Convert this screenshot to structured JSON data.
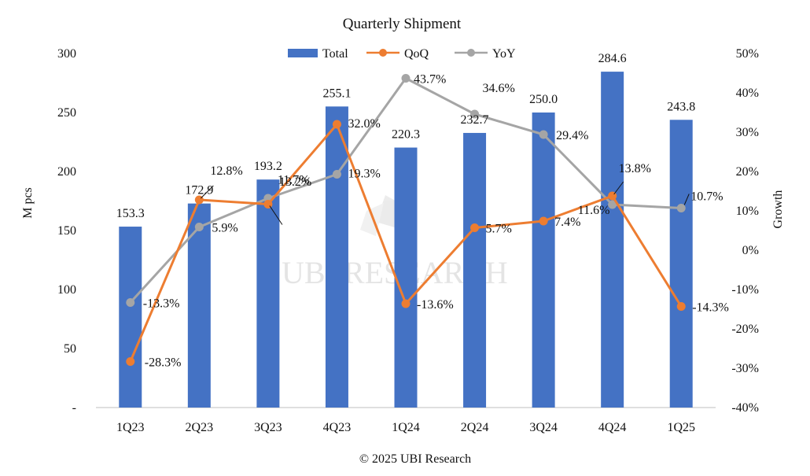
{
  "chart_data": {
    "type": "bar",
    "title": "Quarterly Shipment",
    "categories": [
      "1Q23",
      "2Q23",
      "3Q23",
      "4Q23",
      "1Q24",
      "2Q24",
      "3Q24",
      "4Q24",
      "1Q25"
    ],
    "series": [
      {
        "name": "Total",
        "type": "bar",
        "axis": "left",
        "color": "#4472C4",
        "values": [
          153.3,
          172.9,
          193.2,
          255.1,
          220.3,
          232.7,
          250.0,
          284.6,
          243.8
        ],
        "labels": [
          "153.3",
          "172.9",
          "193.2",
          "255.1",
          "220.3",
          "232.7",
          "250.0",
          "284.6",
          "243.8"
        ]
      },
      {
        "name": "QoQ",
        "type": "line",
        "axis": "right",
        "color": "#ED7D31",
        "values": [
          -28.3,
          12.8,
          11.7,
          32.0,
          -13.6,
          5.7,
          7.4,
          13.8,
          -14.3
        ],
        "labels": [
          "-28.3%",
          "12.8%",
          "11.7%",
          "32.0%",
          "-13.6%",
          "5.7%",
          "7.4%",
          "13.8%",
          "-14.3%"
        ]
      },
      {
        "name": "YoY",
        "type": "line",
        "axis": "right",
        "color": "#A5A5A5",
        "values": [
          -13.3,
          5.9,
          13.2,
          19.3,
          43.7,
          34.6,
          29.4,
          11.6,
          10.7
        ],
        "labels": [
          "-13.3%",
          "5.9%",
          "13.2%",
          "19.3%",
          "43.7%",
          "34.6%",
          "29.4%",
          "11.6%",
          "10.7%"
        ]
      }
    ],
    "ylabel": "M pcs",
    "y2label": "Growth",
    "ylim": [
      0,
      300
    ],
    "y2lim": [
      -40,
      50
    ],
    "yticks": [
      "-",
      "50",
      "100",
      "150",
      "200",
      "250",
      "300"
    ],
    "y2ticks": [
      "-40%",
      "-30%",
      "-20%",
      "-10%",
      "0%",
      "10%",
      "20%",
      "30%",
      "40%",
      "50%"
    ],
    "grid": false,
    "legend_position": "top-center"
  },
  "watermark": "UBI RESEARCH",
  "footer": "© 2025 UBI Research"
}
